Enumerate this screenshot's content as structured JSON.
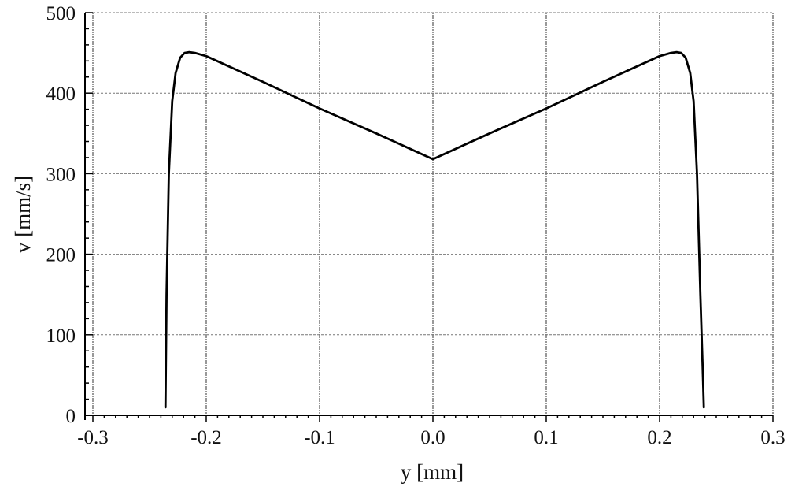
{
  "chart_data": {
    "type": "line",
    "title": "",
    "xlabel": "y [mm]",
    "ylabel": "v [mm/s]",
    "xlim": [
      -0.3,
      0.3
    ],
    "ylim": [
      0,
      500
    ],
    "x_ticks": [
      -0.3,
      -0.2,
      -0.1,
      0.0,
      0.1,
      0.2,
      0.3
    ],
    "x_tick_labels": [
      "-0.3",
      "-0.2",
      "-0.1",
      "0.0",
      "0.1",
      "0.2",
      "0.3"
    ],
    "y_ticks": [
      0,
      100,
      200,
      300,
      400,
      500
    ],
    "y_tick_labels": [
      "0",
      "100",
      "200",
      "300",
      "400",
      "500"
    ],
    "grid": true,
    "legend": "none",
    "line_color": "#000000",
    "grid_color": "#999999",
    "series": [
      {
        "x": [
          -0.236,
          -0.235,
          -0.233,
          -0.23,
          -0.227,
          -0.223,
          -0.219,
          -0.215,
          -0.21,
          -0.2,
          -0.15,
          -0.1,
          -0.05,
          0.0,
          0.05,
          0.1,
          0.15,
          0.2,
          0.21,
          0.215,
          0.219,
          0.223,
          0.227,
          0.23,
          0.233,
          0.236,
          0.238,
          0.239
        ],
        "y": [
          10,
          150,
          300,
          390,
          425,
          444,
          450,
          451,
          450,
          446,
          414,
          381,
          350,
          318,
          350,
          381,
          414,
          446,
          450,
          451,
          450,
          444,
          425,
          390,
          300,
          150,
          60,
          10
        ]
      }
    ]
  }
}
